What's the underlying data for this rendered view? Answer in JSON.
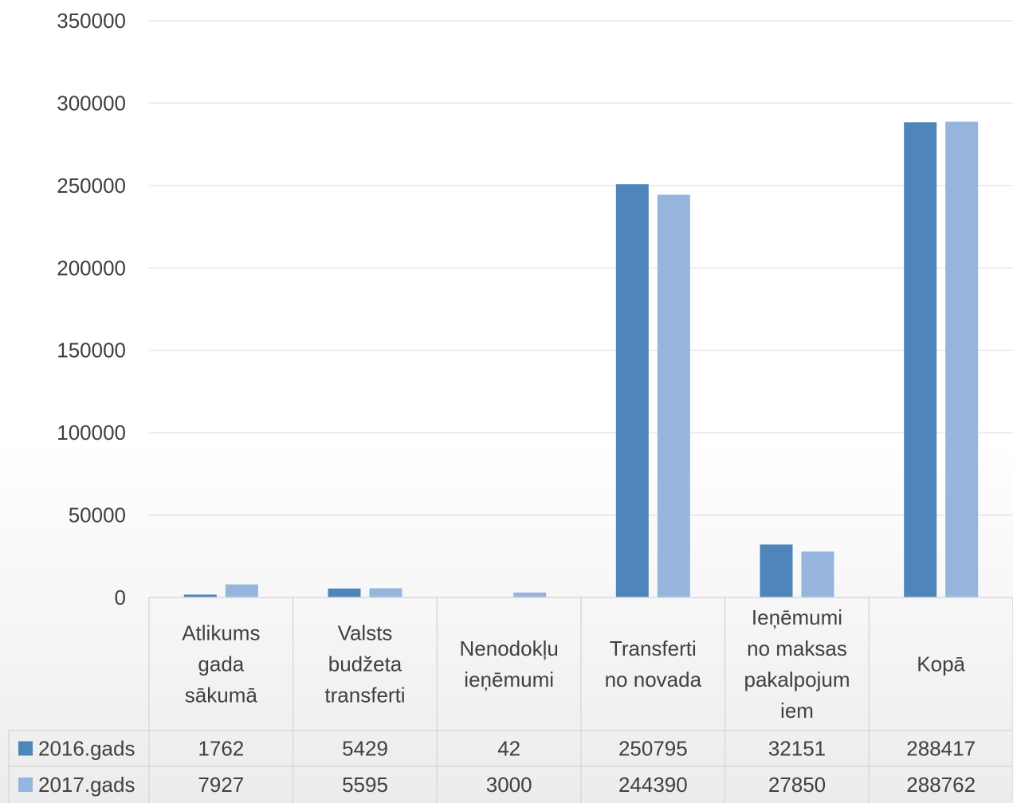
{
  "chart_data": {
    "type": "bar",
    "title": "",
    "xlabel": "",
    "ylabel": "",
    "ylim": [
      0,
      350000
    ],
    "yticks": [
      0,
      50000,
      100000,
      150000,
      200000,
      250000,
      300000,
      350000
    ],
    "grid": true,
    "legend": "data-table-left",
    "categories": [
      [
        "Atlikums",
        "gada",
        "sākumā"
      ],
      [
        "Valsts",
        "budžeta",
        "transferti"
      ],
      [
        "Nenodokļu",
        "ieņēmumi"
      ],
      [
        "Transferti",
        "no novada"
      ],
      [
        "Ieņēmumi",
        "no maksas",
        "pakalpojum",
        "iem"
      ],
      [
        "Kopā"
      ]
    ],
    "series": [
      {
        "name": "2016.gads",
        "color": "#4e86bb",
        "values": [
          1762,
          5429,
          42,
          250795,
          32151,
          288417
        ]
      },
      {
        "name": "2017.gads",
        "color": "#95b5dd",
        "values": [
          7927,
          5595,
          3000,
          244390,
          27850,
          288762
        ]
      }
    ]
  }
}
